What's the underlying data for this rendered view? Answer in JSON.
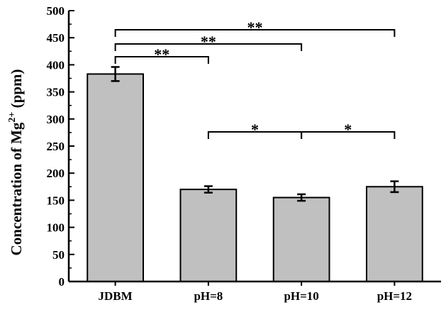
{
  "chart_data": {
    "type": "bar",
    "categories": [
      "JDBM",
      "pH=8",
      "pH=10",
      "pH=12"
    ],
    "values": [
      383,
      170,
      155,
      175
    ],
    "errors": [
      13,
      6,
      6,
      10
    ],
    "ylabel": "Concentration of Mg",
    "ylabel_sup": "2+",
    "ylabel_unit": " (ppm)",
    "xlabel": "",
    "title": "",
    "ylim": [
      0,
      500
    ],
    "y_major_ticks": [
      0,
      50,
      100,
      150,
      200,
      250,
      300,
      350,
      400,
      450,
      500
    ],
    "y_minor_step": 25,
    "bar_color": "#c0c0c0",
    "grid": false,
    "significance": [
      {
        "from": 0,
        "to": 1,
        "label": "**",
        "level": 80
      },
      {
        "from": 0,
        "to": 2,
        "label": "**",
        "level": 62
      },
      {
        "from": 0,
        "to": 3,
        "label": "**",
        "level": 42
      },
      {
        "from": 1,
        "to": 2,
        "label": "*",
        "level": 186
      },
      {
        "from": 2,
        "to": 3,
        "label": "*",
        "level": 186
      }
    ]
  }
}
